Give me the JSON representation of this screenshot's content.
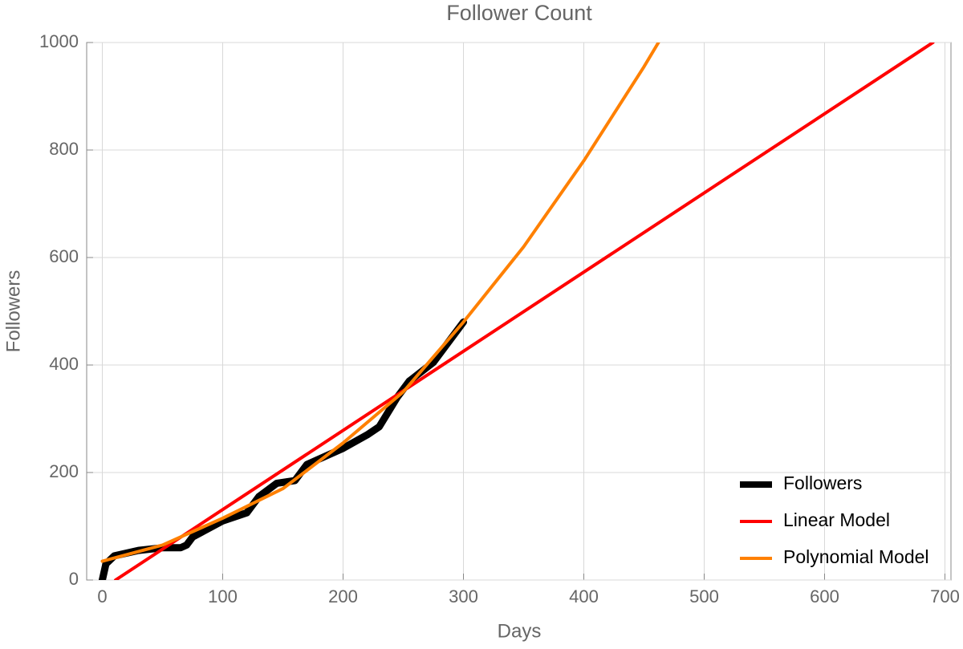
{
  "chart_data": {
    "type": "line",
    "title": "Follower Count",
    "x_label": "Days",
    "y_label": "Followers",
    "xlim": [
      -13,
      705
    ],
    "ylim": [
      0,
      1000
    ],
    "xticks": [
      0,
      100,
      200,
      300,
      400,
      500,
      600,
      700
    ],
    "yticks": [
      0,
      200,
      400,
      600,
      800,
      1000
    ],
    "grid": true,
    "legend": "lower right",
    "series": [
      {
        "name": "Followers",
        "color": "#000000",
        "x": [
          0,
          3,
          10,
          30,
          50,
          65,
          70,
          75,
          100,
          120,
          130,
          145,
          160,
          170,
          200,
          220,
          230,
          245,
          255,
          275,
          290,
          300
        ],
        "values": [
          0,
          30,
          45,
          55,
          60,
          60,
          65,
          80,
          110,
          125,
          155,
          180,
          185,
          215,
          245,
          270,
          285,
          340,
          370,
          405,
          450,
          480
        ]
      },
      {
        "name": "Linear Model",
        "color": "#ff0000",
        "x": [
          11,
          690
        ],
        "values": [
          0,
          1000
        ]
      },
      {
        "name": "Polynomial Model",
        "color": "#ff8000",
        "x": [
          0,
          50,
          100,
          150,
          200,
          250,
          300,
          350,
          400,
          450,
          462
        ],
        "values": [
          35,
          65,
          115,
          170,
          255,
          350,
          480,
          620,
          780,
          955,
          1000
        ]
      }
    ]
  }
}
